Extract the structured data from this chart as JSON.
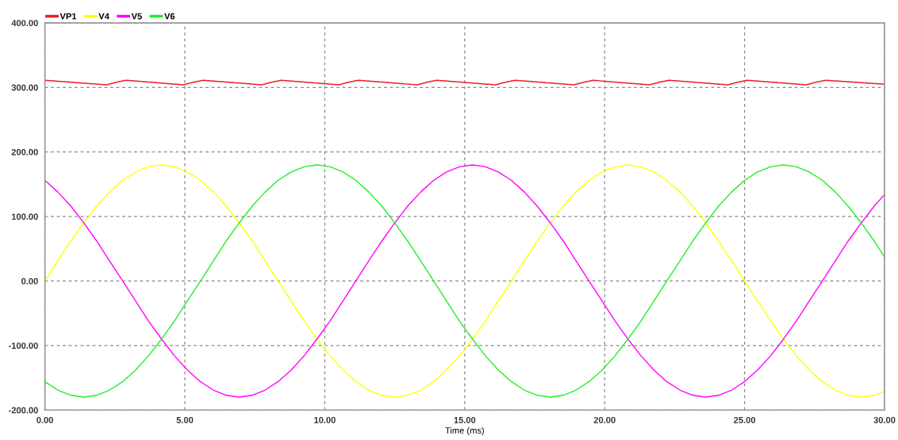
{
  "chart_data": {
    "type": "line",
    "xlabel": "Time (ms)",
    "xlim": [
      0,
      30
    ],
    "ylim": [
      -200,
      400
    ],
    "xticks": [
      {
        "value": 0,
        "label": "0.00"
      },
      {
        "value": 5,
        "label": "5.00"
      },
      {
        "value": 10,
        "label": "10.00"
      },
      {
        "value": 15,
        "label": "15.00"
      },
      {
        "value": 20,
        "label": "20.00"
      },
      {
        "value": 25,
        "label": "25.00"
      },
      {
        "value": 30,
        "label": "30.00"
      }
    ],
    "yticks": [
      {
        "value": -200,
        "label": "-200.00"
      },
      {
        "value": -100,
        "label": "-100.00"
      },
      {
        "value": 0,
        "label": "0.00"
      },
      {
        "value": 100,
        "label": "100.00"
      },
      {
        "value": 200,
        "label": "200.00"
      },
      {
        "value": 300,
        "label": "300.00"
      },
      {
        "value": 400,
        "label": "400.00"
      }
    ],
    "grid": true,
    "legend": "top left",
    "line_style": "solid",
    "marker": "none",
    "x": [
      0,
      0.46,
      0.93,
      1.39,
      1.85,
      2.31,
      2.78,
      3.24,
      3.7,
      4.17,
      4.63,
      5.09,
      5.56,
      6.02,
      6.48,
      6.94,
      7.41,
      7.87,
      8.33,
      8.8,
      9.26,
      9.72,
      10.19,
      10.65,
      11.11,
      11.57,
      12.04,
      12.5,
      12.96,
      13.43,
      13.89,
      14.35,
      14.81,
      15.28,
      15.74,
      16.2,
      16.67,
      17.13,
      17.59,
      18.06,
      18.52,
      18.98,
      19.44,
      19.91,
      20.37,
      20.83,
      21.3,
      21.76,
      22.22,
      22.69,
      23.15,
      23.61,
      24.07,
      24.54,
      25,
      25.46,
      25.93,
      26.39,
      26.85,
      27.31,
      27.78,
      28.24,
      28.7,
      29.17,
      29.63,
      30
    ],
    "series": [
      {
        "name": "VP1",
        "color": "#ee1c24",
        "x": [
          0,
          2.2,
          2.55,
          2.9,
          4.95,
          5.3,
          5.65,
          7.75,
          8.1,
          8.45,
          10.5,
          10.85,
          11.2,
          13.3,
          13.65,
          14.0,
          16.1,
          16.45,
          16.8,
          18.9,
          19.25,
          19.6,
          21.6,
          21.95,
          22.3,
          24.4,
          24.75,
          25.1,
          27.2,
          27.55,
          27.9,
          30
        ],
        "values": [
          311,
          304,
          308,
          311,
          304,
          308,
          311,
          304,
          308,
          311,
          304,
          308,
          311,
          304,
          308,
          311,
          304,
          308,
          311,
          304,
          308,
          311,
          304,
          308,
          311,
          304,
          308,
          311,
          304,
          308,
          311,
          305
        ]
      },
      {
        "name": "V4",
        "color": "#ffff00",
        "values": [
          0,
          31,
          62,
          90,
          116,
          138,
          156,
          169,
          177,
          180,
          177,
          169,
          156,
          138,
          116,
          90,
          62,
          31,
          0,
          -31,
          -62,
          -90,
          -116,
          -138,
          -156,
          -169,
          -177,
          -180,
          -177,
          -169,
          -156,
          -138,
          -116,
          -90,
          -62,
          -31,
          0,
          31,
          62,
          90,
          116,
          138,
          156,
          169,
          177,
          180,
          177,
          169,
          156,
          138,
          116,
          90,
          62,
          31,
          0,
          -31,
          -62,
          -90,
          -116,
          -138,
          -156,
          -169,
          -177,
          -180,
          -177,
          -171
        ]
      },
      {
        "name": "V5",
        "color": "#ff00ff",
        "values": [
          156,
          138,
          116,
          90,
          62,
          31,
          0,
          -31,
          -62,
          -90,
          -116,
          -138,
          -156,
          -169,
          -177,
          -180,
          -177,
          -169,
          -156,
          -138,
          -116,
          -90,
          -62,
          -31,
          0,
          31,
          62,
          90,
          116,
          138,
          156,
          169,
          177,
          180,
          177,
          169,
          156,
          138,
          116,
          90,
          62,
          31,
          0,
          -31,
          -62,
          -90,
          -116,
          -138,
          -156,
          -169,
          -177,
          -180,
          -177,
          -169,
          -156,
          -138,
          -116,
          -90,
          -62,
          -31,
          0,
          31,
          62,
          90,
          116,
          134
        ]
      },
      {
        "name": "V6",
        "color": "#22ee22",
        "values": [
          -156,
          -169,
          -177,
          -180,
          -177,
          -169,
          -156,
          -138,
          -116,
          -90,
          -62,
          -31,
          0,
          31,
          62,
          90,
          116,
          138,
          156,
          169,
          177,
          180,
          177,
          169,
          156,
          138,
          116,
          90,
          62,
          31,
          0,
          -31,
          -62,
          -90,
          -116,
          -138,
          -156,
          -169,
          -177,
          -180,
          -177,
          -169,
          -156,
          -138,
          -116,
          -90,
          -62,
          -31,
          0,
          31,
          62,
          90,
          116,
          138,
          156,
          169,
          177,
          180,
          177,
          169,
          156,
          138,
          116,
          90,
          62,
          37
        ]
      }
    ]
  }
}
